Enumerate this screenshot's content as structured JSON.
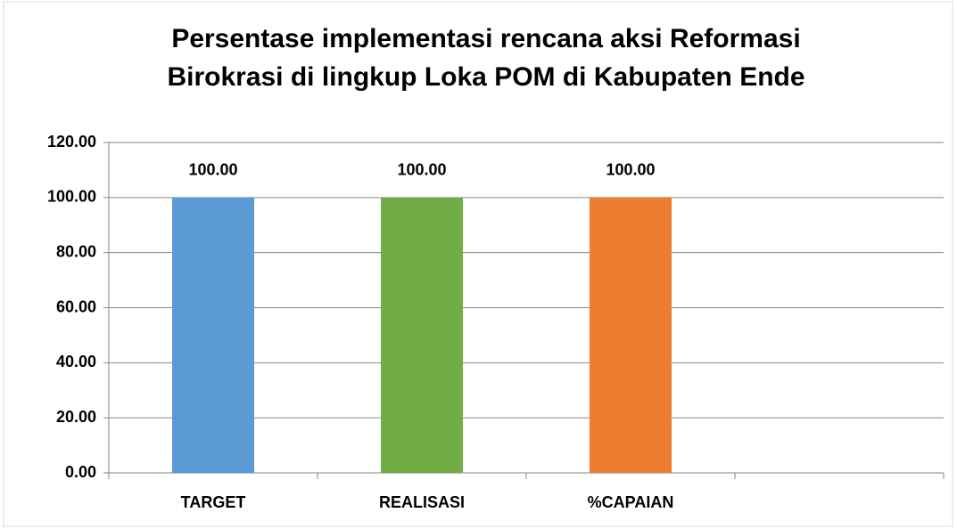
{
  "chart_data": {
    "type": "bar",
    "title": [
      "Persentase implementasi rencana aksi Reformasi",
      "Birokrasi di lingkup Loka POM di Kabupaten Ende"
    ],
    "categories": [
      "TARGET",
      "REALISASI",
      "%CAPAIAN",
      null
    ],
    "values": [
      100,
      100,
      100,
      null
    ],
    "value_labels": [
      "100.00",
      "100.00",
      "100.00",
      null
    ],
    "colors": [
      "#5b9bd5",
      "#70ad47",
      "#ed7d31",
      null
    ],
    "ylim": [
      0,
      120
    ],
    "yticks": [
      {
        "value": 0,
        "label": "0.00"
      },
      {
        "value": 20,
        "label": "20.00"
      },
      {
        "value": 40,
        "label": "40.00"
      },
      {
        "value": 60,
        "label": "60.00"
      },
      {
        "value": 80,
        "label": "80.00"
      },
      {
        "value": 100,
        "label": "100.00"
      },
      {
        "value": 120,
        "label": "120.00"
      }
    ],
    "grid": true
  }
}
